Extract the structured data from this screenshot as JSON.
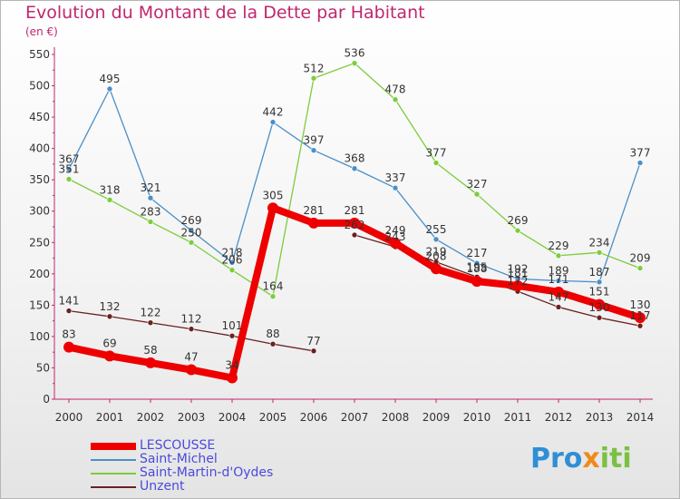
{
  "header": {
    "title": "Evolution du Montant de la Dette par Habitant",
    "unit": "(en €)"
  },
  "brand": {
    "parts": [
      "Pro",
      "x",
      "iti"
    ],
    "colors": [
      "#2e8fd6",
      "#f08a1c",
      "#7ac143"
    ]
  },
  "chart_data": {
    "type": "line",
    "title": "Evolution du Montant de la Dette par Habitant",
    "ylabel": "(en €)",
    "ylim": [
      0,
      550
    ],
    "yticks": [
      0,
      50,
      100,
      150,
      200,
      250,
      300,
      350,
      400,
      450,
      500,
      550
    ],
    "x": [
      "2000",
      "2001",
      "2002",
      "2003",
      "2004",
      "2005",
      "2006",
      "2007",
      "2008",
      "2009",
      "2010",
      "2011",
      "2012",
      "2013",
      "2014"
    ],
    "grid": false,
    "legend": "bottom-left",
    "series": [
      {
        "name": "Saint-Michel",
        "color": "#4a8fc8",
        "width": 1.3,
        "marker": 3,
        "segments": [
          [
            0,
            14
          ]
        ],
        "values": [
          367,
          495,
          321,
          269,
          218,
          442,
          397,
          368,
          337,
          255,
          217,
          192,
          189,
          187,
          377
        ],
        "labels": [
          "367",
          "495",
          "321",
          "269",
          "218",
          "442",
          "397",
          "368",
          "337",
          "255",
          "217",
          "192",
          "189",
          "187",
          "377"
        ]
      },
      {
        "name": "Saint-Martin-d'Oydes",
        "color": "#7ccc3c",
        "width": 1.3,
        "marker": 3,
        "segments": [
          [
            0,
            14
          ]
        ],
        "values": [
          351,
          318,
          283,
          250,
          206,
          164,
          512,
          536,
          478,
          377,
          327,
          269,
          229,
          234,
          209
        ],
        "labels": [
          "351",
          "318",
          "283",
          "250",
          "206",
          "164",
          "512",
          "536",
          "478",
          "377",
          "327",
          "269",
          "229",
          "234",
          "209"
        ]
      },
      {
        "name": "Unzent",
        "color": "#6b2020",
        "width": 1.3,
        "marker": 3,
        "segments": [
          [
            0,
            6
          ],
          [
            7,
            14
          ]
        ],
        "values": [
          141,
          132,
          122,
          112,
          101,
          88,
          77,
          262,
          243,
          219,
          195,
          172,
          147,
          130,
          117
        ],
        "labels": [
          "141",
          "132",
          "122",
          "112",
          "101",
          "88",
          "77",
          "262",
          "243",
          "219",
          "195",
          "172",
          "147",
          "130",
          "117"
        ]
      },
      {
        "name": "LESCOUSSE",
        "color": "#ee0000",
        "width": 8,
        "marker": 6,
        "segments": [
          [
            0,
            14
          ]
        ],
        "values": [
          83,
          69,
          58,
          47,
          34,
          305,
          281,
          281,
          249,
          208,
          188,
          181,
          171,
          151,
          130
        ],
        "labels": [
          "83",
          "69",
          "58",
          "47",
          "34",
          "305",
          "281",
          "281",
          "249",
          "208",
          "188",
          "181",
          "171",
          "151",
          "130"
        ]
      }
    ]
  },
  "legend": {
    "items": [
      {
        "name": "LESCOUSSE",
        "color": "#ee0000",
        "thickness": 8
      },
      {
        "name": "Saint-Michel",
        "color": "#4a8fc8",
        "thickness": 2
      },
      {
        "name": "Saint-Martin-d'Oydes",
        "color": "#7ccc3c",
        "thickness": 2
      },
      {
        "name": "Unzent",
        "color": "#6b2020",
        "thickness": 2
      }
    ]
  }
}
